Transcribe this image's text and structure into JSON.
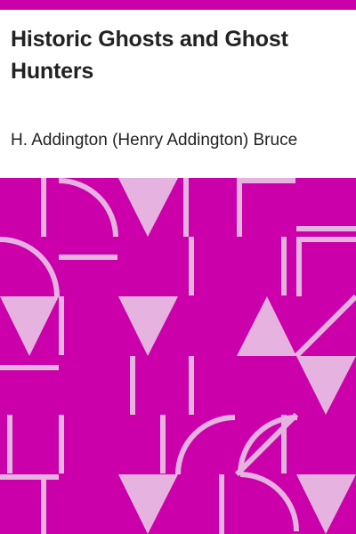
{
  "cover": {
    "title": "Historic Ghosts and Ghost Hunters",
    "author": "H. Addington (Henry Addington) Bruce"
  },
  "colors": {
    "accent": "#cc00aa",
    "pattern_light": "#e6b3e1",
    "text": "#222222",
    "background": "#ffffff"
  }
}
